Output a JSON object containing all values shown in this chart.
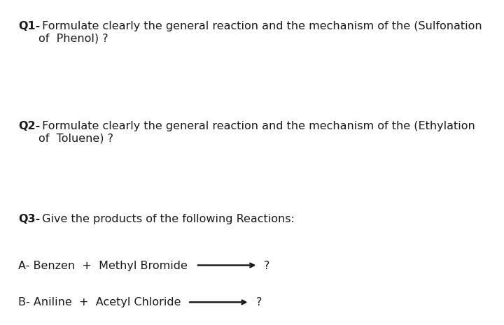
{
  "bg_color": "#ffffff",
  "text_color": "#1a1a1a",
  "figsize": [
    7.2,
    4.65
  ],
  "dpi": 100,
  "q1_bold": "Q1-",
  "q1_normal": " Formulate clearly the general reaction and the mechanism of the (Sulfonation\nof  Phenol) ?",
  "q2_bold": "Q2-",
  "q2_normal": " Formulate clearly the general reaction and the mechanism of the (Ethylation\nof  Toluene) ?",
  "q3_bold": "Q3-",
  "q3_normal": " Give the products of the following Reactions:",
  "qa_text": "A- Benzen  +  Methyl Bromide",
  "qb_text": "B- Aniline  +  Acetyl Chloride",
  "arrow_label": "?",
  "font_size": 11.5
}
